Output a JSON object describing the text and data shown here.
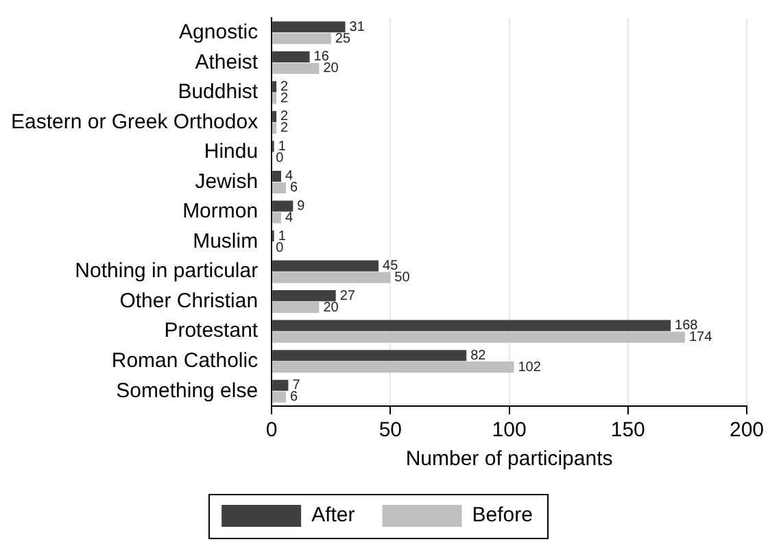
{
  "chart_data": {
    "type": "bar",
    "orientation": "horizontal",
    "categories": [
      "Agnostic",
      "Atheist",
      "Buddhist",
      "Eastern or Greek Orthodox",
      "Hindu",
      "Jewish",
      "Mormon",
      "Muslim",
      "Nothing in particular",
      "Other Christian",
      "Protestant",
      "Roman Catholic",
      "Something else"
    ],
    "series": [
      {
        "name": "After",
        "color": "#404040",
        "values": [
          31,
          16,
          2,
          2,
          1,
          4,
          9,
          1,
          45,
          27,
          168,
          82,
          7
        ]
      },
      {
        "name": "Before",
        "color": "#bfbfbf",
        "values": [
          25,
          20,
          2,
          2,
          0,
          6,
          4,
          0,
          50,
          20,
          174,
          102,
          6
        ]
      }
    ],
    "xlabel": "Number of participants",
    "xlim": [
      0,
      200
    ],
    "xticks": [
      0,
      50,
      100,
      150,
      200
    ],
    "grid": "x",
    "legend": "bottom",
    "data_labels": true
  }
}
